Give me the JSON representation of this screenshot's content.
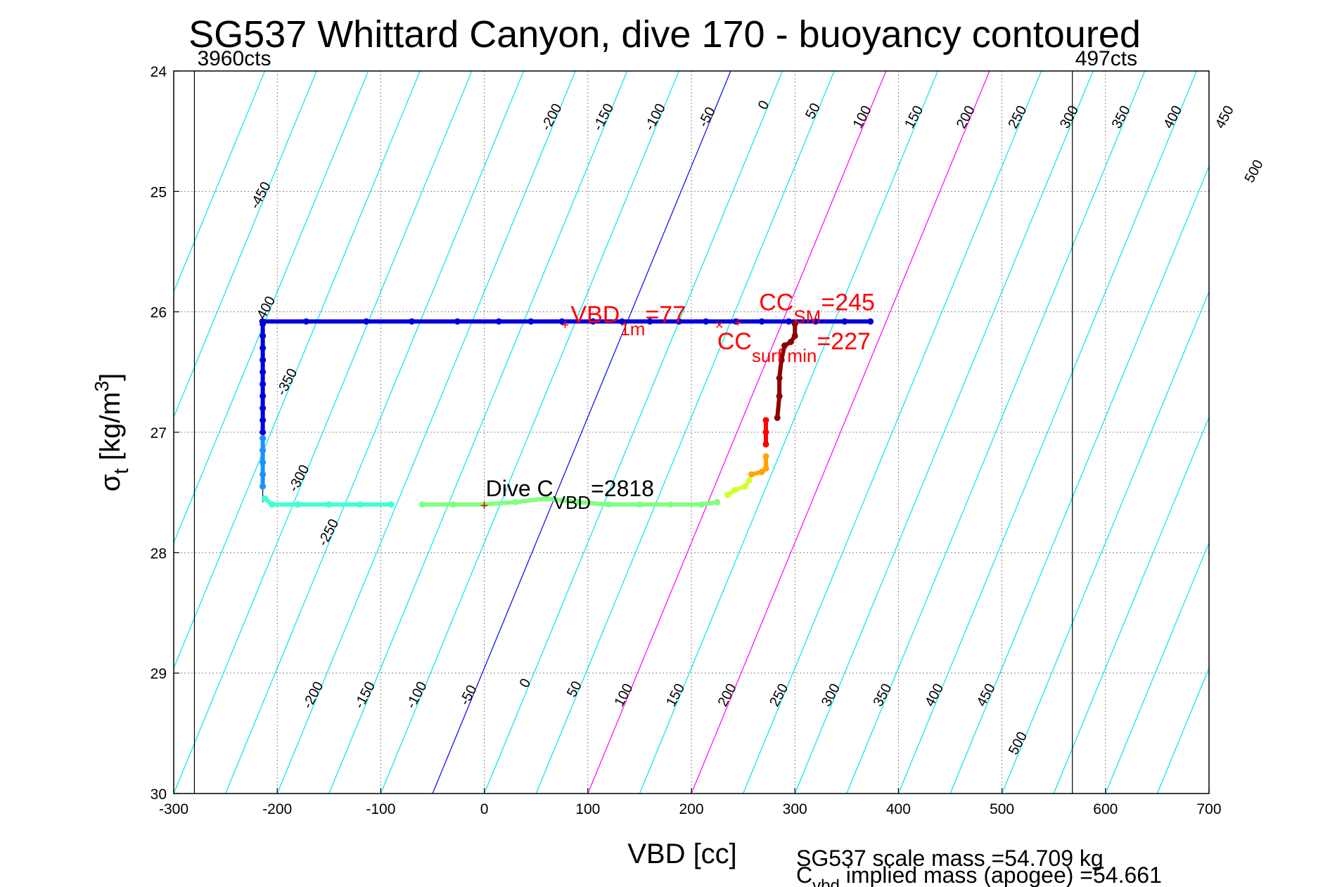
{
  "chart_data": {
    "type": "scatter",
    "title": "SG537 Whittard Canyon, dive 170 - buoyancy contoured",
    "xlabel": "VBD [cc]",
    "ylabel": {
      "main": "σ",
      "sub": "t",
      "rest": " [kg/m",
      "sup": "3",
      "close": "]"
    },
    "xlim": [
      -300,
      700
    ],
    "ylim": [
      24,
      30
    ],
    "y_reversed": true,
    "grid": true,
    "x_ticks": [
      -300,
      -200,
      -100,
      0,
      100,
      200,
      300,
      400,
      500,
      600,
      700
    ],
    "x_tick_labels": [
      "-300",
      "-200",
      "-100",
      "0",
      "100",
      "200",
      "300",
      "400",
      "500",
      "600",
      "700"
    ],
    "y_ticks": [
      24,
      25,
      26,
      27,
      28,
      29,
      30
    ],
    "y_tick_labels": [
      "24",
      "25",
      "26",
      "27",
      "28",
      "29",
      "30"
    ],
    "contour_spacing_cc": 50,
    "contour_reference_sigma": 30,
    "contour_slope_cc_per_sigma": -48,
    "contour_levels": [
      -500,
      -450,
      -400,
      -350,
      -300,
      -250,
      -200,
      -150,
      -100,
      -50,
      0,
      50,
      100,
      150,
      200,
      250,
      300,
      350,
      400,
      450,
      500,
      550,
      600,
      650,
      700,
      750
    ],
    "special_contours": [
      {
        "level": -50,
        "color": "#0000ff"
      },
      {
        "level": 100,
        "color": "#ff00ff"
      },
      {
        "level": 200,
        "color": "#ff00ff"
      }
    ],
    "contour_color": "#00e5ee",
    "contour_labels_top": [
      {
        "text": "-450",
        "sigma": 25.05
      },
      {
        "text": "-400",
        "sigma": 26.0
      },
      {
        "text": "-350",
        "sigma": 26.6
      },
      {
        "text": "-200",
        "sigma": 24.4
      },
      {
        "text": "-150",
        "sigma": 24.4
      },
      {
        "text": "-100",
        "sigma": 24.4
      },
      {
        "text": "-50",
        "sigma": 24.4
      },
      {
        "text": "0",
        "sigma": 24.3
      },
      {
        "text": "50",
        "sigma": 24.35
      },
      {
        "text": "100",
        "sigma": 24.4
      },
      {
        "text": "150",
        "sigma": 24.4
      },
      {
        "text": "200",
        "sigma": 24.4
      },
      {
        "text": "250",
        "sigma": 24.4
      },
      {
        "text": "300",
        "sigma": 24.4
      },
      {
        "text": "350",
        "sigma": 24.4
      },
      {
        "text": "400",
        "sigma": 24.4
      },
      {
        "text": "450",
        "sigma": 24.4
      },
      {
        "text": "500",
        "sigma": 24.85
      }
    ],
    "contour_labels_bottom": [
      {
        "text": "-300",
        "sigma": 27.4
      },
      {
        "text": "-250",
        "sigma": 27.85
      },
      {
        "text": "-200",
        "sigma": 29.2
      },
      {
        "text": "-150",
        "sigma": 29.2
      },
      {
        "text": "-100",
        "sigma": 29.2
      },
      {
        "text": "-50",
        "sigma": 29.2
      },
      {
        "text": "0",
        "sigma": 29.1
      },
      {
        "text": "50",
        "sigma": 29.15
      },
      {
        "text": "100",
        "sigma": 29.2
      },
      {
        "text": "150",
        "sigma": 29.2
      },
      {
        "text": "200",
        "sigma": 29.2
      },
      {
        "text": "250",
        "sigma": 29.2
      },
      {
        "text": "300",
        "sigma": 29.2
      },
      {
        "text": "350",
        "sigma": 29.2
      },
      {
        "text": "400",
        "sigma": 29.2
      },
      {
        "text": "450",
        "sigma": 29.2
      },
      {
        "text": "500",
        "sigma": 29.6
      }
    ],
    "vertical_lines": [
      {
        "x": -280,
        "label": "3960cts"
      },
      {
        "x": 568,
        "label": "497cts"
      }
    ],
    "series": [
      {
        "color": "#0000dd",
        "points": [
          [
            -214,
            26.08
          ],
          [
            -172,
            26.08
          ],
          [
            -114,
            26.08
          ],
          [
            -70,
            26.08
          ],
          [
            -26,
            26.08
          ],
          [
            14,
            26.08
          ],
          [
            45,
            26.08
          ],
          [
            75,
            26.08
          ],
          [
            105,
            26.08
          ],
          [
            133,
            26.08
          ],
          [
            160,
            26.08
          ],
          [
            188,
            26.08
          ],
          [
            214,
            26.08
          ],
          [
            243,
            26.08
          ],
          [
            268,
            26.08
          ],
          [
            294,
            26.08
          ],
          [
            320,
            26.08
          ],
          [
            348,
            26.08
          ],
          [
            373,
            26.08
          ]
        ]
      },
      {
        "color": "#0000dd",
        "points": [
          [
            -214,
            26.1
          ],
          [
            -214,
            26.2
          ],
          [
            -214,
            26.3
          ],
          [
            -214,
            26.4
          ],
          [
            -214,
            26.5
          ],
          [
            -214,
            26.6
          ],
          [
            -214,
            26.7
          ],
          [
            -214,
            26.8
          ],
          [
            -214,
            26.9
          ],
          [
            -214,
            27.0
          ]
        ]
      },
      {
        "color": "#1e90ff",
        "points": [
          [
            -214,
            27.05
          ],
          [
            -214,
            27.15
          ],
          [
            -214,
            27.25
          ],
          [
            -214,
            27.35
          ],
          [
            -214,
            27.45
          ]
        ]
      },
      {
        "color": "#40ffd0",
        "points": [
          [
            -212,
            27.55
          ],
          [
            -205,
            27.6
          ],
          [
            -180,
            27.6
          ],
          [
            -150,
            27.6
          ],
          [
            -120,
            27.6
          ],
          [
            -90,
            27.6
          ]
        ]
      },
      {
        "color": "#80ff80",
        "points": [
          [
            -60,
            27.6
          ],
          [
            -30,
            27.6
          ],
          [
            0,
            27.6
          ],
          [
            30,
            27.58
          ],
          [
            60,
            27.55
          ],
          [
            90,
            27.58
          ],
          [
            120,
            27.6
          ],
          [
            150,
            27.6
          ],
          [
            180,
            27.6
          ],
          [
            210,
            27.6
          ],
          [
            225,
            27.58
          ]
        ]
      },
      {
        "color": "#d0ff30",
        "points": [
          [
            235,
            27.52
          ],
          [
            242,
            27.48
          ],
          [
            252,
            27.45
          ],
          [
            256,
            27.4
          ]
        ]
      },
      {
        "color": "#ffa500",
        "points": [
          [
            258,
            27.35
          ],
          [
            268,
            27.33
          ],
          [
            272,
            27.3
          ],
          [
            272,
            27.2
          ]
        ]
      },
      {
        "color": "#ff0000",
        "points": [
          [
            272,
            27.1
          ],
          [
            272,
            27.0
          ],
          [
            272,
            26.9
          ]
        ]
      },
      {
        "color": "#8b0000",
        "points": [
          [
            283,
            26.88
          ],
          [
            285,
            26.7
          ],
          [
            285,
            26.55
          ],
          [
            287,
            26.4
          ],
          [
            290,
            26.28
          ],
          [
            296,
            26.25
          ],
          [
            300,
            26.2
          ],
          [
            300,
            26.1
          ]
        ]
      }
    ],
    "trajectory_line": [
      [
        -214,
        26.08
      ],
      [
        373,
        26.08
      ]
    ],
    "trajectory_line_vertical": [
      [
        -214,
        26.08
      ],
      [
        -214,
        27.58
      ]
    ],
    "annotations": {
      "vbd_1m": {
        "text": "VBD",
        "sub": "1m",
        "rest": "=77",
        "x": 78,
        "sigma": 26.1
      },
      "cc_sm": {
        "text": "CC",
        "sub": "SM",
        "rest": "=245",
        "x": 245,
        "sigma": 26.08
      },
      "cc_surf_min": {
        "text": "CC",
        "sub": "surf min",
        "rest": "=227",
        "x": 227,
        "sigma": 26.1
      },
      "dive_cvbd": {
        "text": "Dive C",
        "sub": "VBD",
        "rest": "=2818",
        "x": 0,
        "sigma": 27.6
      }
    },
    "footer_lines": [
      {
        "text": "SG537 scale mass =54.709 kg"
      },
      {
        "prefix": "C",
        "sub": "vbd",
        "text": " implied mass (apogee) =54.661"
      }
    ]
  }
}
